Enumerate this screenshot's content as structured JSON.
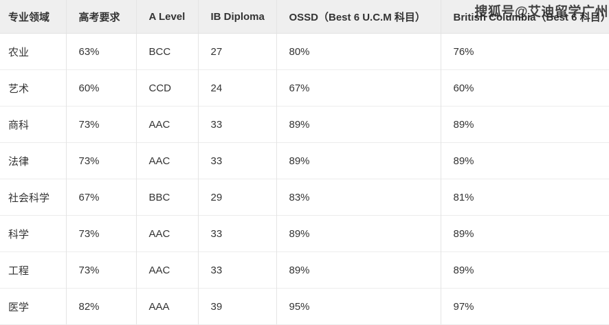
{
  "watermark": {
    "text": "搜狐号@艾迪留学广州"
  },
  "colors": {
    "header_bg": "#efefef",
    "grid_line": "#e4e4e4",
    "row_line": "#ececec",
    "text": "#333333",
    "watermark": "#2a2a2a"
  },
  "table": {
    "columns": [
      {
        "key": "field",
        "label": "专业领域"
      },
      {
        "key": "gaokao",
        "label": "高考要求"
      },
      {
        "key": "alevel",
        "label": "A Level"
      },
      {
        "key": "ib",
        "label": "IB Diploma"
      },
      {
        "key": "ossd",
        "label": "OSSD（Best 6 U.C.M 科目）"
      },
      {
        "key": "bc",
        "label": "British Columbia（Best 6 科目）"
      }
    ],
    "rows": [
      [
        "农业",
        "63%",
        "BCC",
        "27",
        "80%",
        "76%"
      ],
      [
        "艺术",
        "60%",
        "CCD",
        "24",
        "67%",
        "60%"
      ],
      [
        "商科",
        "73%",
        "AAC",
        "33",
        "89%",
        "89%"
      ],
      [
        "法律",
        "73%",
        "AAC",
        "33",
        "89%",
        "89%"
      ],
      [
        "社会科学",
        "67%",
        "BBC",
        "29",
        "83%",
        "81%"
      ],
      [
        "科学",
        "73%",
        "AAC",
        "33",
        "89%",
        "89%"
      ],
      [
        "工程",
        "73%",
        "AAC",
        "33",
        "89%",
        "89%"
      ],
      [
        "医学",
        "82%",
        "AAA",
        "39",
        "95%",
        "97%"
      ]
    ]
  }
}
